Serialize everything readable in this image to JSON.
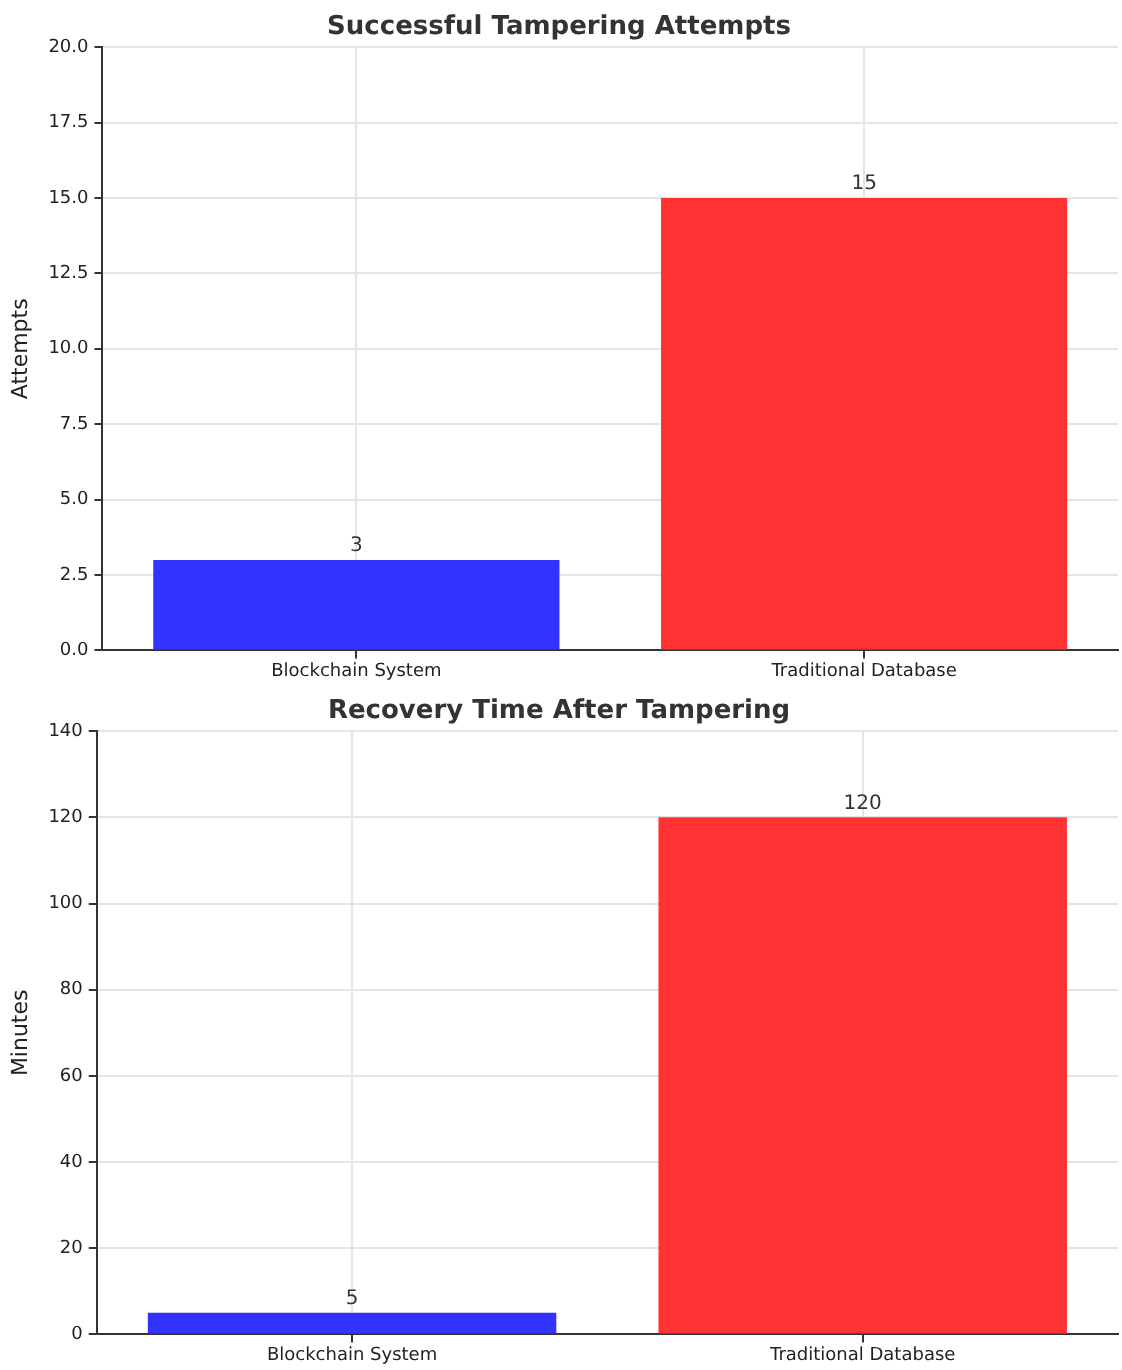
{
  "chart_data": [
    {
      "type": "bar",
      "title": "Successful Tampering Attempts",
      "ylabel": "Attempts",
      "categories": [
        "Blockchain System",
        "Traditional Database"
      ],
      "values": [
        3,
        15
      ],
      "colors": [
        "#3333ff",
        "#ff3333"
      ],
      "ylim": [
        0,
        20
      ],
      "yticks": [
        {
          "value": 0,
          "label": "0.0"
        },
        2.5,
        {
          "value": 5,
          "label": "5.0"
        },
        7.5,
        {
          "value": 10,
          "label": "10.0"
        },
        12.5,
        {
          "value": 15,
          "label": "15.0"
        },
        17.5,
        {
          "value": 20,
          "label": "20.0"
        }
      ],
      "grid": true,
      "data_labels": true
    },
    {
      "type": "bar",
      "title": "Recovery Time After Tampering",
      "ylabel": "Minutes",
      "categories": [
        "Blockchain System",
        "Traditional Database"
      ],
      "values": [
        5,
        120
      ],
      "colors": [
        "#3333ff",
        "#ff3333"
      ],
      "ylim": [
        0,
        140
      ],
      "yticks": [
        0,
        20,
        40,
        60,
        80,
        100,
        120,
        140
      ],
      "grid": true,
      "data_labels": true
    }
  ]
}
